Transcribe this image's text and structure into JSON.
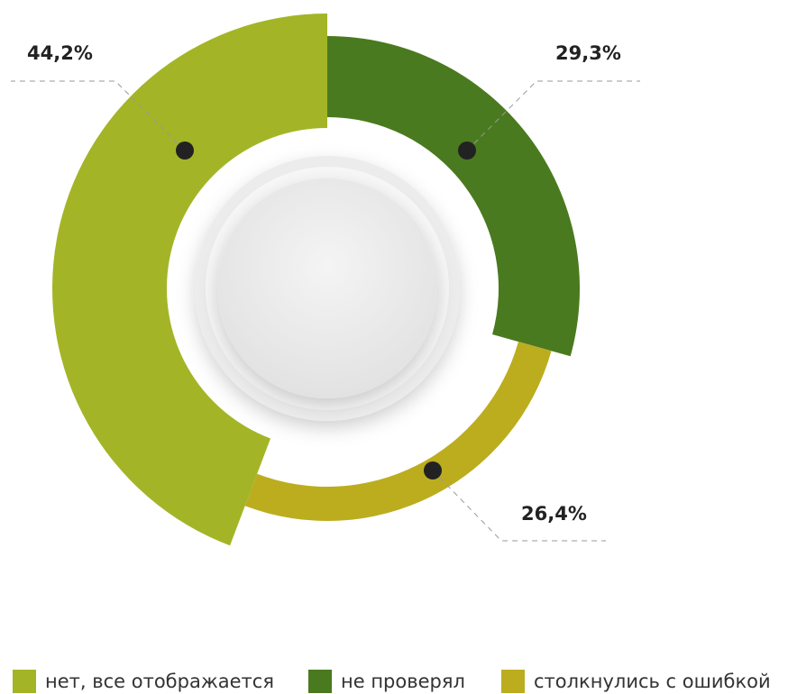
{
  "chart_data": {
    "type": "donut",
    "categories": [
      "нет, все отображается",
      "не проверял",
      "столкнулись с ошибкой"
    ],
    "values": [
      44.2,
      29.3,
      26.4
    ],
    "value_labels": [
      "44,2%",
      "29,3%",
      "26,4%"
    ],
    "colors": [
      "#a3b526",
      "#4a7a1f",
      "#bcad1f"
    ],
    "legend": "bottom"
  }
}
